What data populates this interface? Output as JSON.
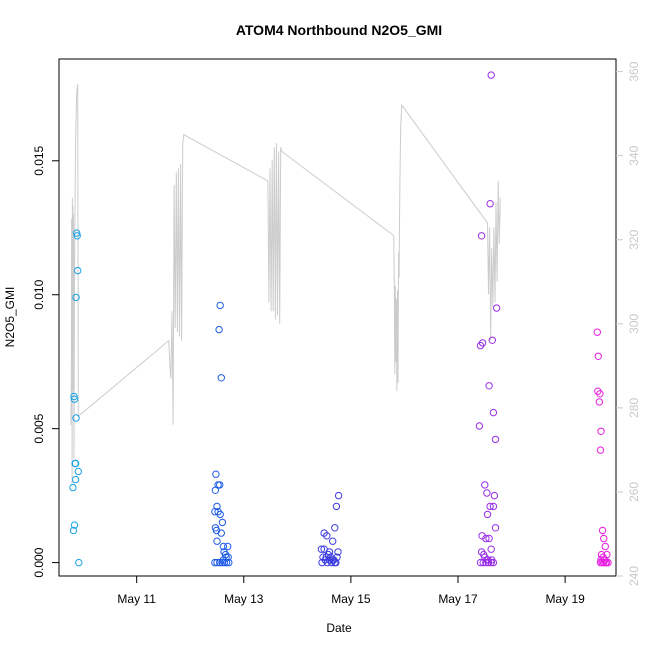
{
  "chart_data": {
    "type": "scatter",
    "title": "ATOM4 Northbound N2O5_GMI",
    "xlabel": "Date",
    "ylabel": "N2O5_GMI",
    "x_ticks": [
      "May 11",
      "May 13",
      "May 15",
      "May 17",
      "May 19"
    ],
    "y_ticks": [
      "0.000",
      "0.005",
      "0.010",
      "0.015"
    ],
    "y2_ticks": [
      "240",
      "260",
      "280",
      "300",
      "320",
      "340",
      "360"
    ],
    "xlim_days": [
      9.55,
      19.95
    ],
    "ylim": [
      -0.0005,
      0.0188
    ],
    "y2lim": [
      240,
      363
    ],
    "scatter_series": [
      {
        "name": "",
        "color": "#1aa3e8",
        "points": [
          [
            9.83,
            0.0062
          ],
          [
            9.84,
            0.0061
          ],
          [
            9.85,
            0.0037
          ],
          [
            9.86,
            0.0037
          ],
          [
            9.87,
            0.0054
          ],
          [
            9.88,
            0.0123
          ],
          [
            9.89,
            0.0122
          ],
          [
            9.9,
            0.0109
          ],
          [
            9.87,
            0.0099
          ],
          [
            9.81,
            0.0028
          ],
          [
            9.86,
            0.0031
          ],
          [
            9.91,
            0.0034
          ],
          [
            9.82,
            0.0012
          ],
          [
            9.84,
            0.0014
          ],
          [
            9.92,
            0.0
          ]
        ]
      },
      {
        "name": "",
        "color": "#1f5ce8",
        "points": [
          [
            12.48,
            0.0033
          ],
          [
            12.47,
            0.0027
          ],
          [
            12.46,
            0.0019
          ],
          [
            12.5,
            0.0021
          ],
          [
            12.52,
            0.0019
          ],
          [
            12.56,
            0.0018
          ],
          [
            12.6,
            0.0015
          ],
          [
            12.47,
            0.0013
          ],
          [
            12.49,
            0.0012
          ],
          [
            12.52,
            0.0029
          ],
          [
            12.55,
            0.0029
          ],
          [
            12.58,
            0.0011
          ],
          [
            12.62,
            0.0006
          ],
          [
            12.7,
            0.0006
          ],
          [
            12.66,
            0.0003
          ],
          [
            12.71,
            0.0002
          ],
          [
            12.5,
            0.0008
          ],
          [
            12.54,
            0.0087
          ],
          [
            12.56,
            0.0096
          ],
          [
            12.58,
            0.0069
          ],
          [
            12.46,
            0.0
          ],
          [
            12.5,
            0.0
          ],
          [
            12.55,
            0.0
          ],
          [
            12.6,
            0.0
          ],
          [
            12.64,
            0.0
          ],
          [
            12.68,
            0.0
          ],
          [
            12.72,
            0.0
          ],
          [
            12.62,
            0.0001
          ],
          [
            12.67,
            0.0002
          ],
          [
            12.63,
            0.0004
          ]
        ]
      },
      {
        "name": "",
        "color": "#3c3ce0",
        "points": [
          [
            14.45,
            0.0005
          ],
          [
            14.5,
            0.0011
          ],
          [
            14.55,
            0.001
          ],
          [
            14.6,
            0.0004
          ],
          [
            14.66,
            0.0008
          ],
          [
            14.7,
            0.0013
          ],
          [
            14.73,
            0.0021
          ],
          [
            14.77,
            0.0025
          ],
          [
            14.48,
            0.0002
          ],
          [
            14.52,
            0.0001
          ],
          [
            14.56,
            0.0
          ],
          [
            14.6,
            0.0001
          ],
          [
            14.64,
            0.0
          ],
          [
            14.68,
            0.0001
          ],
          [
            14.72,
            0.0
          ],
          [
            14.46,
            0.0
          ],
          [
            14.58,
            0.0003
          ],
          [
            14.62,
            0.0002
          ],
          [
            14.66,
            0.0001
          ],
          [
            14.7,
            0.0
          ],
          [
            14.74,
            0.0002
          ],
          [
            14.5,
            0.0005
          ],
          [
            14.76,
            0.0004
          ],
          [
            14.54,
            0.0002
          ]
        ]
      },
      {
        "name": "",
        "color": "#9a2ee8",
        "points": [
          [
            17.4,
            0.0051
          ],
          [
            17.42,
            0.0081
          ],
          [
            17.44,
            0.0122
          ],
          [
            17.46,
            0.0082
          ],
          [
            17.5,
            0.0029
          ],
          [
            17.54,
            0.0026
          ],
          [
            17.58,
            0.0066
          ],
          [
            17.6,
            0.0134
          ],
          [
            17.62,
            0.0182
          ],
          [
            17.64,
            0.0083
          ],
          [
            17.66,
            0.0056
          ],
          [
            17.68,
            0.0025
          ],
          [
            17.7,
            0.0046
          ],
          [
            17.72,
            0.0095
          ],
          [
            17.55,
            0.0018
          ],
          [
            17.6,
            0.0021
          ],
          [
            17.66,
            0.0021
          ],
          [
            17.7,
            0.0013
          ],
          [
            17.45,
            0.001
          ],
          [
            17.52,
            0.0009
          ],
          [
            17.58,
            0.0009
          ],
          [
            17.62,
            0.0005
          ],
          [
            17.44,
            0.0004
          ],
          [
            17.48,
            0.0003
          ],
          [
            17.5,
            0.0002
          ],
          [
            17.54,
            0.0001
          ],
          [
            17.42,
            0.0
          ],
          [
            17.47,
            0.0
          ],
          [
            17.52,
            0.0
          ],
          [
            17.57,
            0.0
          ],
          [
            17.62,
            0.0
          ],
          [
            17.66,
            0.0
          ],
          [
            17.56,
            0.0001
          ],
          [
            17.63,
            0.0001
          ]
        ]
      },
      {
        "name": "",
        "color": "#e81ee0",
        "points": [
          [
            19.6,
            0.0086
          ],
          [
            19.62,
            0.0077
          ],
          [
            19.61,
            0.0064
          ],
          [
            19.64,
            0.006
          ],
          [
            19.65,
            0.0063
          ],
          [
            19.67,
            0.0049
          ],
          [
            19.66,
            0.0042
          ],
          [
            19.7,
            0.0012
          ],
          [
            19.72,
            0.0009
          ],
          [
            19.75,
            0.0006
          ],
          [
            19.68,
            0.0003
          ],
          [
            19.71,
            0.0002
          ],
          [
            19.74,
            0.0001
          ],
          [
            19.78,
            0.0003
          ],
          [
            19.66,
            0.0
          ],
          [
            19.69,
            0.0
          ],
          [
            19.72,
            0.0
          ],
          [
            19.76,
            0.0
          ],
          [
            19.8,
            0.0
          ],
          [
            19.67,
            0.0001
          ],
          [
            19.73,
            0.0001
          ],
          [
            19.77,
            0.0
          ]
        ]
      }
    ],
    "line_series": {
      "name": "",
      "axis": "right",
      "color": "#cccccc",
      "points": [
        [
          9.77,
          276
        ],
        [
          9.78,
          285
        ],
        [
          9.785,
          325
        ],
        [
          9.79,
          315
        ],
        [
          9.795,
          262
        ],
        [
          9.8,
          330
        ],
        [
          9.805,
          300
        ],
        [
          9.81,
          328
        ],
        [
          9.815,
          284
        ],
        [
          9.82,
          326
        ],
        [
          9.83,
          268
        ],
        [
          9.84,
          312
        ],
        [
          9.86,
          344
        ],
        [
          9.88,
          355
        ],
        [
          9.9,
          357
        ],
        [
          9.91,
          278
        ],
        [
          11.6,
          296
        ],
        [
          11.62,
          290
        ],
        [
          11.64,
          287
        ],
        [
          11.66,
          303
        ],
        [
          11.68,
          276
        ],
        [
          11.7,
          333
        ],
        [
          11.72,
          299
        ],
        [
          11.74,
          336
        ],
        [
          11.76,
          298
        ],
        [
          11.78,
          337
        ],
        [
          11.8,
          297
        ],
        [
          11.82,
          338
        ],
        [
          11.84,
          296
        ],
        [
          11.86,
          343
        ],
        [
          11.88,
          345
        ],
        [
          13.45,
          334
        ],
        [
          13.47,
          305
        ],
        [
          13.49,
          337
        ],
        [
          13.51,
          303
        ],
        [
          13.53,
          339
        ],
        [
          13.55,
          303
        ],
        [
          13.57,
          342
        ],
        [
          13.59,
          301
        ],
        [
          13.61,
          343
        ],
        [
          13.63,
          302
        ],
        [
          13.65,
          341
        ],
        [
          13.67,
          300
        ],
        [
          13.69,
          342
        ],
        [
          13.71,
          341
        ],
        [
          15.8,
          321
        ],
        [
          15.81,
          310
        ],
        [
          15.82,
          288
        ],
        [
          15.83,
          309
        ],
        [
          15.84,
          291
        ],
        [
          15.85,
          306
        ],
        [
          15.86,
          284
        ],
        [
          15.87,
          308
        ],
        [
          15.88,
          286
        ],
        [
          15.89,
          317
        ],
        [
          15.9,
          311
        ],
        [
          15.91,
          327
        ],
        [
          15.92,
          339
        ],
        [
          15.93,
          347
        ],
        [
          15.95,
          352
        ],
        [
          17.55,
          324
        ],
        [
          17.57,
          307
        ],
        [
          17.59,
          323
        ],
        [
          17.61,
          296
        ],
        [
          17.63,
          318
        ],
        [
          17.65,
          304
        ],
        [
          17.67,
          323
        ],
        [
          17.69,
          305
        ],
        [
          17.71,
          329
        ],
        [
          17.73,
          310
        ],
        [
          17.75,
          334
        ],
        [
          17.77,
          319
        ],
        [
          17.79,
          330
        ]
      ]
    }
  }
}
